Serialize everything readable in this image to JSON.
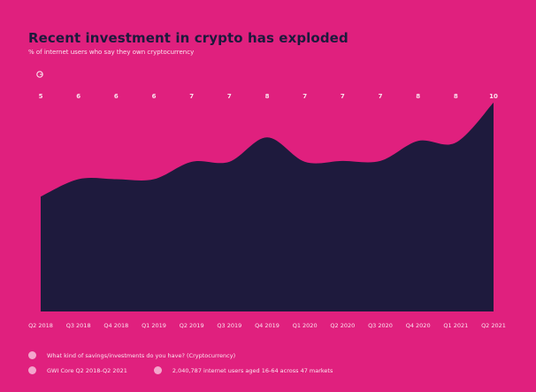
{
  "header": {
    "title": "Recent investment in crypto has exploded",
    "subtitle": "% of internet users who say they own cryptocurrency"
  },
  "brand": {
    "icon": "gwi-logo-icon"
  },
  "colors": {
    "background": "#e0207e",
    "area_fill": "#1e1a3d",
    "text_light": "#fbe3ee",
    "legend_dot": "#f3a6cc"
  },
  "chart_data": {
    "type": "area",
    "title": "Recent investment in crypto has exploded",
    "subtitle": "% of internet users who say they own cryptocurrency",
    "categories": [
      "Q2 2018",
      "Q3 2018",
      "Q4 2018",
      "Q1 2019",
      "Q2 2019",
      "Q3 2019",
      "Q4 2019",
      "Q1 2020",
      "Q2 2020",
      "Q3 2020",
      "Q4 2020",
      "Q1 2021",
      "Q2 2021"
    ],
    "values": [
      5,
      6,
      6,
      6,
      7,
      7,
      8,
      7,
      7,
      7,
      8,
      8,
      10
    ],
    "smoothed_values": [
      5.0,
      6.0,
      6.0,
      6.0,
      7.0,
      7.0,
      8.4,
      7.0,
      7.05,
      7.05,
      8.2,
      8.1,
      10.4
    ],
    "ylim": [
      -1.6,
      10.6
    ],
    "grid": false,
    "legend": "none"
  },
  "footer": {
    "question": "What kind of savings/investments do you have? (Cryptocurrency)",
    "source": "GWI Core Q2 2018-Q2 2021",
    "sample": "2,040,787 internet users aged 16-64 across 47 markets"
  }
}
